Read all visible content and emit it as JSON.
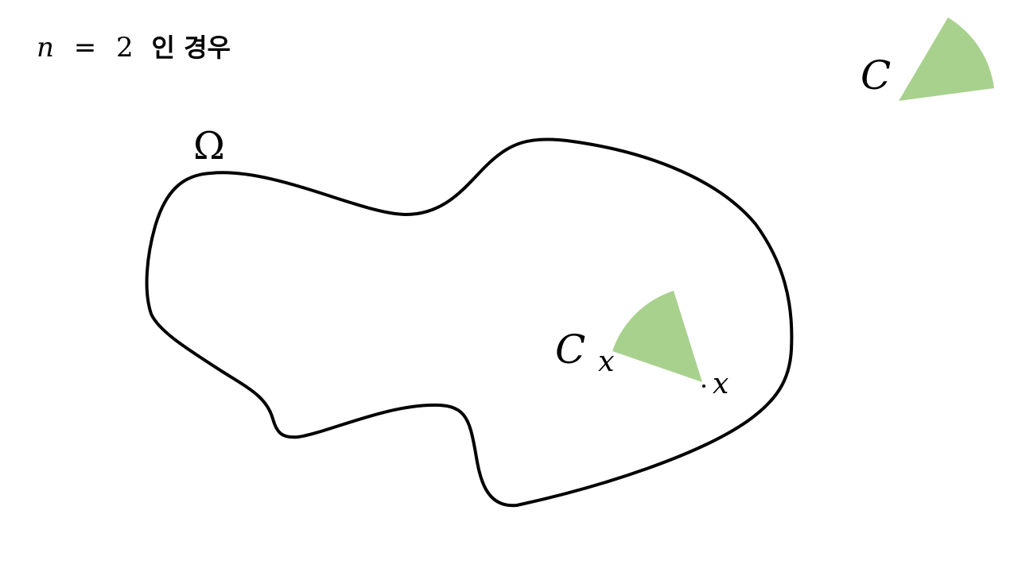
{
  "heading": {
    "var": "n",
    "eq": "=",
    "value": "2",
    "suffix": "인 경우"
  },
  "region_label": "Ω",
  "cone_label": "C",
  "translated_cone": {
    "label_main": "C",
    "label_sub": "x"
  },
  "point_label": "x",
  "colors": {
    "cone_fill": "#a9d18e",
    "outline": "#000000"
  }
}
